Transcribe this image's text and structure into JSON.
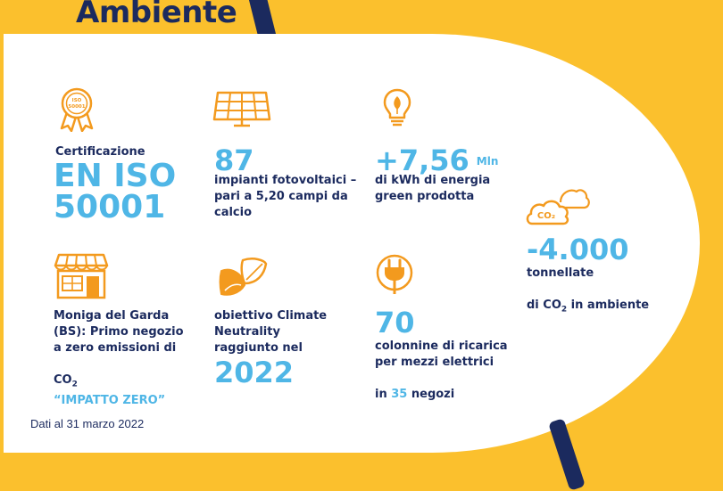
{
  "title": "Ambiente",
  "colors": {
    "navy": "#1b2a5e",
    "accent_blue": "#4fb6e6",
    "orange": "#f39a1e",
    "yellow": "#fbc02d"
  },
  "cert": {
    "label": "Certificazione",
    "value_line1": "EN ISO",
    "value_line2": "50001",
    "medal_text_1": "ISO",
    "medal_text_2": "50001",
    "icon": "medal-icon"
  },
  "solar": {
    "value": "87",
    "text": "impianti fotovoltaici –\npari a 5,20 campi da\ncalcio",
    "icon": "solar-panel-icon"
  },
  "energy": {
    "value": "+7,56",
    "unit": "Mln",
    "text": "di kWh di energia\ngreen prodotta",
    "icon": "eco-bulb-icon"
  },
  "co2": {
    "value": "-4.000",
    "text_line1": "tonnellate",
    "text_line2_prefix": "di CO",
    "text_line2_sub": "2",
    "text_line2_suffix": " in ambiente",
    "cloud_text": "CO₂",
    "icon": "co2-cloud-icon"
  },
  "store": {
    "text": "Moniga del Garda\n(BS): Primo negozio\na zero emissioni di",
    "co2_prefix": "CO",
    "co2_sub": "2",
    "highlight": "“IMPATTO ZERO”",
    "icon": "store-icon"
  },
  "climate": {
    "text": "obiettivo Climate\nNeutrality\nraggiunto nel",
    "value": "2022",
    "icon": "leaves-icon"
  },
  "charging": {
    "value": "70",
    "text": "colonnine di ricarica\nper mezzi elettrici",
    "in_prefix": "in ",
    "stores_count": "35",
    "in_suffix": " negozi",
    "icon": "plug-icon"
  },
  "footnote": "Dati al 31 marzo 2022"
}
